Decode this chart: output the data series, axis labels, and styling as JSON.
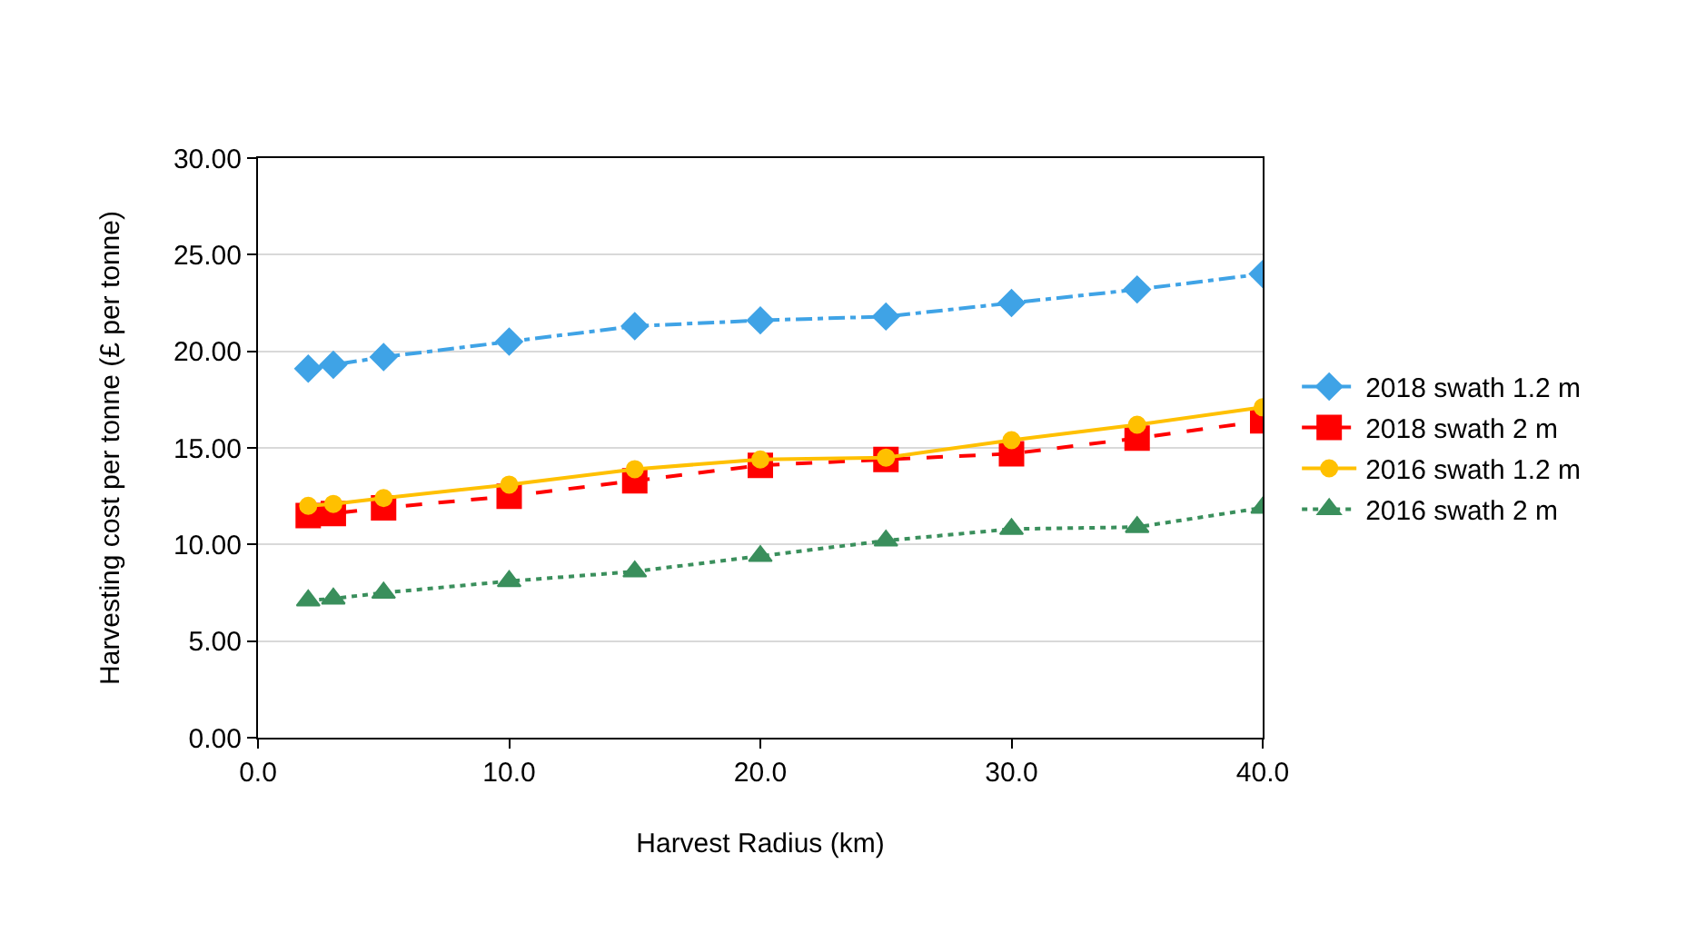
{
  "chart_data": {
    "type": "line",
    "xlabel": "Harvest Radius (km)",
    "ylabel": "Harvesting cost per tonne (£ per tonne)",
    "x": [
      2,
      3,
      5,
      10,
      15,
      20,
      25,
      30,
      35,
      40
    ],
    "series": [
      {
        "name": "2018 swath 1.2 m",
        "color": "#3fa3e6",
        "marker": "diamond",
        "line_style": "dashdot",
        "values": [
          19.1,
          19.3,
          19.7,
          20.5,
          21.3,
          21.6,
          21.8,
          22.5,
          23.2,
          24.0
        ]
      },
      {
        "name": "2018 swath 2 m",
        "color": "#ff0000",
        "marker": "square",
        "line_style": "dashed",
        "values": [
          11.5,
          11.6,
          11.9,
          12.5,
          13.3,
          14.1,
          14.4,
          14.7,
          15.5,
          16.4
        ]
      },
      {
        "name": "2016 swath 1.2 m",
        "color": "#ffc000",
        "marker": "circle",
        "line_style": "solid",
        "values": [
          12.0,
          12.1,
          12.4,
          13.1,
          13.9,
          14.4,
          14.5,
          15.4,
          16.2,
          17.1
        ]
      },
      {
        "name": "2016 swath 2 m",
        "color": "#3a8f5c",
        "marker": "triangle",
        "line_style": "dotted",
        "values": [
          7.1,
          7.2,
          7.5,
          8.1,
          8.6,
          9.4,
          10.2,
          10.8,
          10.9,
          11.9
        ]
      }
    ],
    "xlim": [
      0,
      40
    ],
    "xticks": [
      {
        "value": 0,
        "label": "0.0"
      },
      {
        "value": 10,
        "label": "10.0"
      },
      {
        "value": 20,
        "label": "20.0"
      },
      {
        "value": 30,
        "label": "30.0"
      },
      {
        "value": 40,
        "label": "40.0"
      }
    ],
    "ylim": [
      0,
      30
    ],
    "yticks": [
      {
        "value": 0,
        "label": "0.00"
      },
      {
        "value": 5,
        "label": "5.00"
      },
      {
        "value": 10,
        "label": "10.00"
      },
      {
        "value": 15,
        "label": "15.00"
      },
      {
        "value": 20,
        "label": "20.00"
      },
      {
        "value": 25,
        "label": "25.00"
      },
      {
        "value": 30,
        "label": "30.00"
      }
    ],
    "grid": "y",
    "legend": "right"
  }
}
